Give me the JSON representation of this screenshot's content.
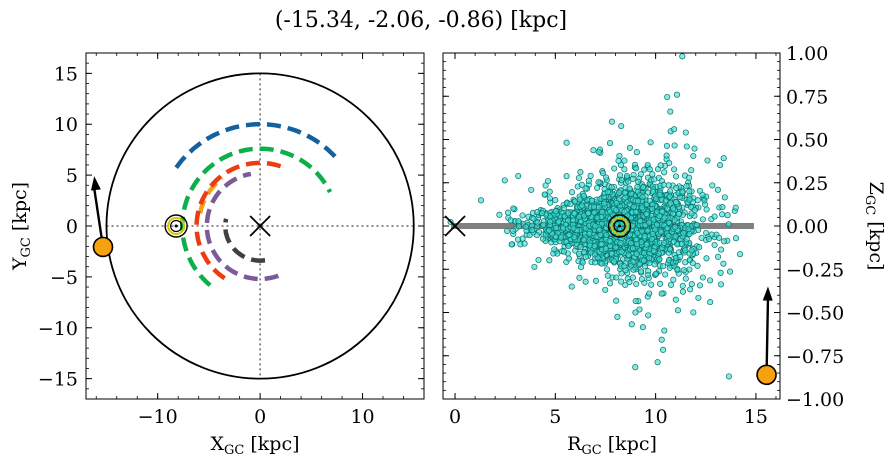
{
  "figure": {
    "title": "(-15.34, -2.06, -0.86) [kpc]"
  },
  "colors": {
    "blue": "#1461a0",
    "green": "#0cb04a",
    "orange": "#f4a118",
    "red": "#ee3c12",
    "purple": "#7a5a99",
    "dark": "#404040",
    "star": "#f7a110",
    "scatter_fill": "#3ee0d6",
    "scatter_edge": "#0c6e6a",
    "disk_line": "#808080"
  },
  "chart_data": [
    {
      "type": "line",
      "name": "left-panel",
      "xlabel": "X",
      "xlabel_sub": "GC",
      "xlabel_unit": " [kpc]",
      "ylabel": "Y",
      "ylabel_sub": "GC",
      "ylabel_unit": " [kpc]",
      "xlim": [
        -17,
        16
      ],
      "ylim": [
        -17,
        17
      ],
      "xticks": [
        -10,
        0,
        10
      ],
      "yticks": [
        -15,
        -10,
        -5,
        0,
        5,
        10,
        15
      ],
      "xtick_labels": [
        "−10",
        "0",
        "10"
      ],
      "ytick_labels": [
        "−15",
        "−10",
        "−5",
        "0",
        "5",
        "10",
        "15"
      ],
      "circle_radius": 15,
      "center_marker": [
        0,
        0
      ],
      "sun": [
        -8.2,
        0
      ],
      "star": [
        -15.34,
        -2.06
      ],
      "arrow_to": [
        -16.2,
        4.9
      ],
      "arms": [
        {
          "color": "blue",
          "r": 10.0,
          "theta": [
            145,
            40
          ]
        },
        {
          "color": "green",
          "r": 7.6,
          "theta": [
            230,
            26
          ]
        },
        {
          "color": "orange",
          "r": 6.0,
          "theta": [
            168,
            128
          ]
        },
        {
          "color": "red",
          "r": 6.2,
          "theta": [
            236,
            68
          ]
        },
        {
          "color": "purple",
          "r": 5.2,
          "theta": [
            290,
            100
          ]
        },
        {
          "color": "dark",
          "r": 3.4,
          "theta": [
            278,
            168
          ]
        }
      ]
    },
    {
      "type": "scatter",
      "name": "right-panel",
      "xlabel": "R",
      "xlabel_sub": "GC",
      "xlabel_unit": " [kpc]",
      "ylabel": "Z",
      "ylabel_sub": "GC",
      "ylabel_unit": " [kpc]",
      "xlim": [
        -0.6,
        16.2
      ],
      "ylim": [
        -1.0,
        1.0
      ],
      "xticks": [
        0,
        5,
        10,
        15
      ],
      "yticks": [
        -1.0,
        -0.75,
        -0.5,
        -0.25,
        0.0,
        0.25,
        0.5,
        0.75,
        1.0
      ],
      "xtick_labels": [
        "0",
        "5",
        "10",
        "15"
      ],
      "ytick_labels": [
        "−1.00",
        "−0.75",
        "−0.50",
        "−0.25",
        "0.00",
        "0.25",
        "0.50",
        "0.75",
        "1.00"
      ],
      "disk_line": [
        -0.2,
        14.9
      ],
      "center_marker": [
        0,
        0
      ],
      "sun": [
        8.2,
        0
      ],
      "star": [
        15.53,
        -0.86
      ],
      "arrow_to": [
        15.6,
        -0.35
      ],
      "cluster": {
        "x_center": 8.3,
        "x_spread": 2.0,
        "z_spread": 0.12,
        "n": 2200
      }
    }
  ]
}
